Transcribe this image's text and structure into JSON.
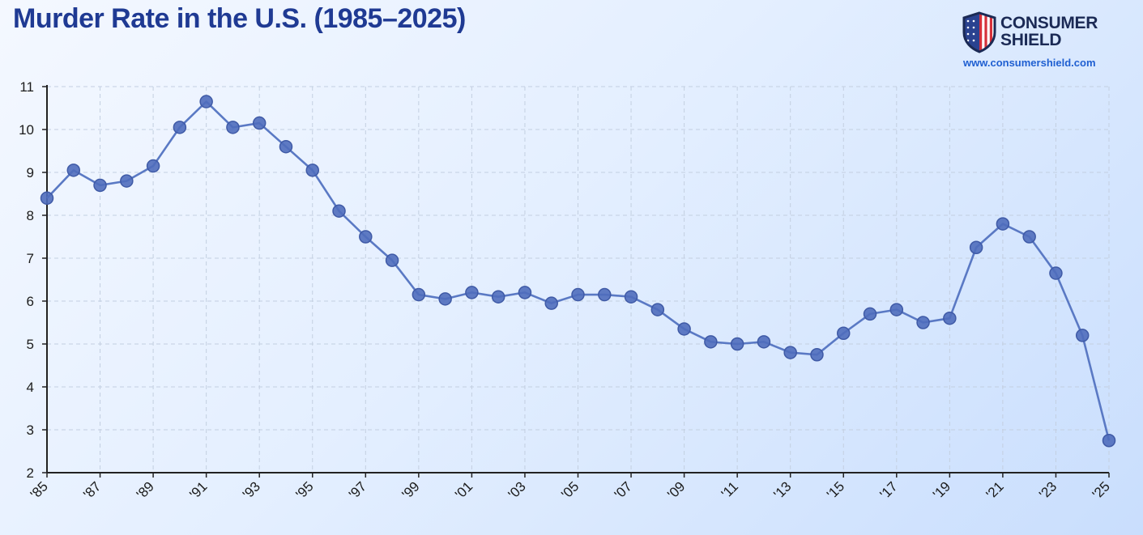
{
  "header": {
    "title": "Murder Rate in the U.S. (1985–2025)"
  },
  "brand": {
    "name_line1": "CONSUMER",
    "name_line2": "SHIELD",
    "url": "www.consumershield.com",
    "icon": "shield-flag-icon"
  },
  "colors": {
    "title": "#1f3a93",
    "line": "#5a79c4",
    "point": "#4f6dbd",
    "grid": "#c3cfe0",
    "url": "#1f5fd1"
  },
  "chart_data": {
    "type": "line",
    "title": "Murder Rate in the U.S. (1985–2025)",
    "xlabel": "",
    "ylabel": "",
    "x": [
      1985,
      1986,
      1987,
      1988,
      1989,
      1990,
      1991,
      1992,
      1993,
      1994,
      1995,
      1996,
      1997,
      1998,
      1999,
      2000,
      2001,
      2002,
      2003,
      2004,
      2005,
      2006,
      2007,
      2008,
      2009,
      2010,
      2011,
      2012,
      2013,
      2014,
      2015,
      2016,
      2017,
      2018,
      2019,
      2020,
      2021,
      2022,
      2023,
      2024,
      2025
    ],
    "series": [
      {
        "values": [
          8.4,
          9.05,
          8.7,
          8.8,
          9.15,
          10.05,
          10.65,
          10.05,
          10.15,
          9.6,
          9.05,
          8.1,
          7.5,
          6.95,
          6.15,
          6.05,
          6.2,
          6.1,
          6.2,
          5.95,
          6.15,
          6.15,
          6.1,
          5.8,
          5.35,
          5.05,
          5.0,
          5.05,
          4.8,
          4.75,
          5.25,
          5.7,
          5.8,
          5.5,
          5.6,
          7.25,
          7.8,
          7.5,
          6.65,
          5.2,
          2.75
        ]
      }
    ],
    "xlim": [
      1985,
      2025
    ],
    "ylim": [
      2,
      11
    ],
    "y_ticks": [
      "2",
      "3",
      "4",
      "5",
      "6",
      "7",
      "8",
      "9",
      "10",
      "11"
    ],
    "x_ticks": [
      "'85",
      "'87",
      "'89",
      "'91",
      "'93",
      "'95",
      "'97",
      "'99",
      "'01",
      "'03",
      "'05",
      "'07",
      "'09",
      "'11",
      "'13",
      "'15",
      "'17",
      "'19",
      "'21",
      "'23",
      "'25"
    ],
    "grid": true,
    "legend": "none"
  }
}
